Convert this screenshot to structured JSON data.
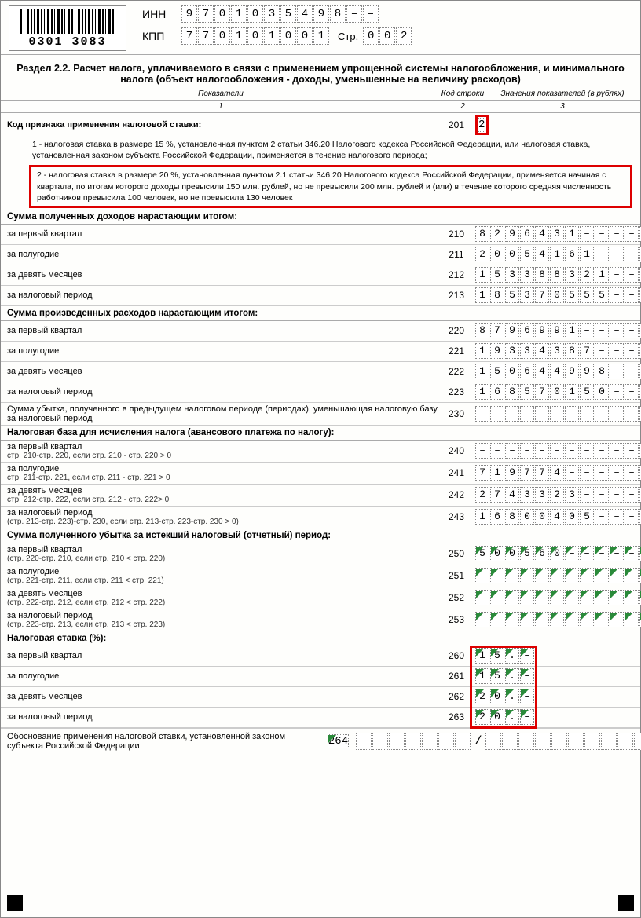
{
  "barcode_number": "0301 3083",
  "inn_label": "ИНН",
  "kpp_label": "КПП",
  "str_label": "Стр.",
  "inn": [
    "9",
    "7",
    "0",
    "1",
    "0",
    "3",
    "5",
    "4",
    "9",
    "8",
    "–",
    "–"
  ],
  "kpp": [
    "7",
    "7",
    "0",
    "1",
    "0",
    "1",
    "0",
    "0",
    "1"
  ],
  "page_no": [
    "0",
    "0",
    "2"
  ],
  "title": "Раздел 2.2. Расчет налога, уплачиваемого в связи с применением упрощенной системы налогообложения, и минимального налога (объект налогообложения - доходы, уменьшенные на величину расходов)",
  "col_head_1": "Показатели",
  "col_head_2": "Код строки",
  "col_head_3": "Значения показателей (в рублях)",
  "colnum1": "1",
  "colnum2": "2",
  "colnum3": "3",
  "s201_label": "Код признака применения налоговой ставки:",
  "s201_code": "201",
  "s201_value": "2",
  "note1": "1 - налоговая ставка в размере 15 %, установленная пунктом 2 статьи 346.20 Налогового кодекса Российской Федерации, или налоговая ставка, установленная законом субъекта Российской Федерации, применяется в течение налогового периода;",
  "note2": "2 - налоговая ставка в размере 20 %, установленная пунктом 2.1 статьи 346.20 Налогового кодекса Российской Федерации, применяется начиная с квартала, по итогам которого доходы превысили 150 млн. рублей, но не превысили 200 млн. рублей и (или) в течение которого средняя численность работников превысила 100 человек, но не превысила 130 человек",
  "sec_income": "Сумма полученных доходов нарастающим итогом:",
  "q1": "за первый квартал",
  "q2": "за полугодие",
  "q3": "за девять месяцев",
  "q4": "за налоговый период",
  "sec_expense": "Сумма произведенных расходов нарастающим итогом:",
  "loss_prev": "Сумма убытка, полученного в предыдущем налоговом периоде (периодах), уменьшающая налоговую базу за налоговый период",
  "sec_base": "Налоговая база для исчисления налога (авансового платежа по налогу):",
  "b240_sub": "стр. 210-стр. 220, если стр. 210 - стр. 220 > 0",
  "b241_sub": "стр. 211-стр. 221, если стр. 211 - стр. 221 > 0",
  "b242_sub": "стр. 212-стр. 222, если стр. 212 - стр. 222> 0",
  "b243_sub": "(стр. 213-стр. 223)-стр. 230, если стр. 213-стр. 223-стр. 230 > 0)",
  "sec_loss": "Сумма полученного убытка за истекший налоговый (отчетный) период:",
  "l250_sub": "(стр. 220-стр. 210, если стр. 210 < стр. 220)",
  "l251_sub": "(стр. 221-стр. 211, если стр. 211 < стр. 221)",
  "l252_sub": "(стр. 222-стр. 212, если стр. 212 < стр. 222)",
  "l253_sub": "(стр. 223-стр. 213, если стр. 213 < стр. 223)",
  "sec_rate": "Налоговая ставка (%):",
  "s264_label": "Обоснование применения налоговой ставки, установленной законом субъекта Российской Федерации",
  "rows": {
    "210": [
      "8",
      "2",
      "9",
      "6",
      "4",
      "3",
      "1",
      "–",
      "–",
      "–",
      "–",
      "–"
    ],
    "211": [
      "2",
      "0",
      "0",
      "5",
      "4",
      "1",
      "6",
      "1",
      "–",
      "–",
      "–",
      "–"
    ],
    "212": [
      "1",
      "5",
      "3",
      "3",
      "8",
      "8",
      "3",
      "2",
      "1",
      "–",
      "–",
      "–"
    ],
    "213": [
      "1",
      "8",
      "5",
      "3",
      "7",
      "0",
      "5",
      "5",
      "5",
      "–",
      "–",
      "–"
    ],
    "220": [
      "8",
      "7",
      "9",
      "6",
      "9",
      "9",
      "1",
      "–",
      "–",
      "–",
      "–",
      "–"
    ],
    "221": [
      "1",
      "9",
      "3",
      "3",
      "4",
      "3",
      "8",
      "7",
      "–",
      "–",
      "–",
      "–"
    ],
    "222": [
      "1",
      "5",
      "0",
      "6",
      "4",
      "4",
      "9",
      "9",
      "8",
      "–",
      "–",
      "–"
    ],
    "223": [
      "1",
      "6",
      "8",
      "5",
      "7",
      "0",
      "1",
      "5",
      "0",
      "–",
      "–",
      "–"
    ],
    "230": [
      "",
      "",
      "",
      "",
      "",
      "",
      "",
      "",
      "",
      "",
      "",
      ""
    ],
    "240": [
      "–",
      "–",
      "–",
      "–",
      "–",
      "–",
      "–",
      "–",
      "–",
      "–",
      "–",
      "–"
    ],
    "241": [
      "7",
      "1",
      "9",
      "7",
      "7",
      "4",
      "–",
      "–",
      "–",
      "–",
      "–",
      "–"
    ],
    "242": [
      "2",
      "7",
      "4",
      "3",
      "3",
      "2",
      "3",
      "–",
      "–",
      "–",
      "–",
      "–"
    ],
    "243": [
      "1",
      "6",
      "8",
      "0",
      "0",
      "4",
      "0",
      "5",
      "–",
      "–",
      "–",
      "–"
    ],
    "250": [
      "5",
      "0",
      "0",
      "5",
      "6",
      "0",
      "–",
      "–",
      "–",
      "–",
      "–",
      "–"
    ],
    "251": [
      "",
      "",
      "",
      "",
      "",
      "",
      "",
      "",
      "",
      "",
      "",
      ""
    ],
    "252": [
      "",
      "",
      "",
      "",
      "",
      "",
      "",
      "",
      "",
      "",
      "",
      ""
    ],
    "253": [
      "",
      "",
      "",
      "",
      "",
      "",
      "",
      "",
      "",
      "",
      "",
      ""
    ],
    "260": [
      "1",
      "5",
      ".",
      "–"
    ],
    "261": [
      "1",
      "5",
      ".",
      "–"
    ],
    "262": [
      "2",
      "0",
      ".",
      "–"
    ],
    "263": [
      "2",
      "0",
      ".",
      "–"
    ]
  },
  "s264_left": [
    "–",
    "–",
    "–",
    "–",
    "–",
    "–",
    "–"
  ],
  "s264_right": [
    "–",
    "–",
    "–",
    "–",
    "–",
    "–",
    "–",
    "–",
    "–",
    "–",
    "–",
    "–"
  ],
  "green_rows": [
    "250",
    "251",
    "252",
    "253",
    "260",
    "261",
    "262",
    "263"
  ],
  "highlight_color": "#d00"
}
